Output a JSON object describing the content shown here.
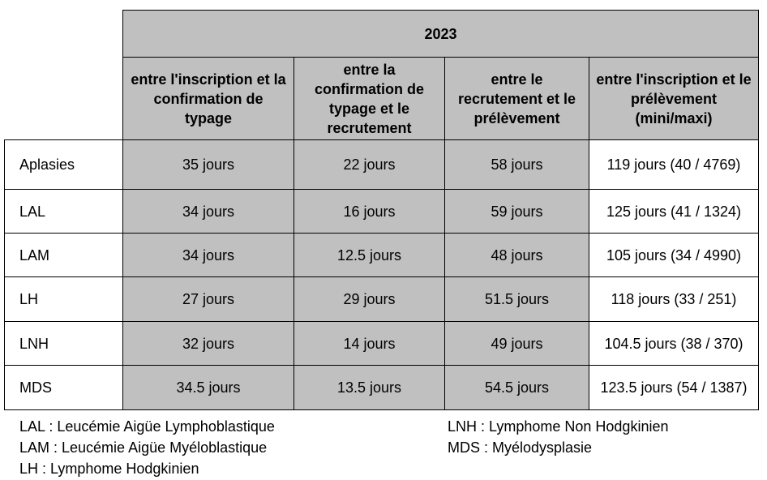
{
  "table": {
    "year": "2023",
    "columns": [
      "entre l'inscription et la confirmation de typage",
      "entre la confirmation de typage et le recrutement",
      "entre le recrutement et le prélèvement",
      "entre l'inscription et le prélèvement (mini/maxi)"
    ],
    "rows": [
      {
        "label": "Aplasies",
        "values": [
          "35 jours",
          "22 jours",
          "58 jours",
          "119 jours (40 / 4769)"
        ]
      },
      {
        "label": "LAL",
        "values": [
          "34 jours",
          "16 jours",
          "59 jours",
          "125 jours (41 / 1324)"
        ]
      },
      {
        "label": "LAM",
        "values": [
          "34 jours",
          "12.5 jours",
          "48 jours",
          "105 jours (34 / 4990)"
        ]
      },
      {
        "label": "LH",
        "values": [
          "27 jours",
          "29 jours",
          "51.5 jours",
          "118 jours (33 / 251)"
        ]
      },
      {
        "label": "LNH",
        "values": [
          "32 jours",
          "14 jours",
          "49 jours",
          "104.5 jours (38 / 370)"
        ]
      },
      {
        "label": "MDS",
        "values": [
          "34.5 jours",
          "13.5 jours",
          "54.5 jours",
          "123.5 jours (54 / 1387)"
        ]
      }
    ]
  },
  "legend": {
    "left": [
      "LAL : Leucémie Aigüe Lymphoblastique",
      "LAM : Leucémie Aigüe Myéloblastique",
      "LH : Lymphome Hodgkinien"
    ],
    "right": [
      "LNH : Lymphome Non Hodgkinien",
      "MDS : Myélodysplasie"
    ]
  },
  "colors": {
    "header_fill": "#c0c0c0",
    "data_fill": "#c0c0c0",
    "border": "#000000"
  }
}
